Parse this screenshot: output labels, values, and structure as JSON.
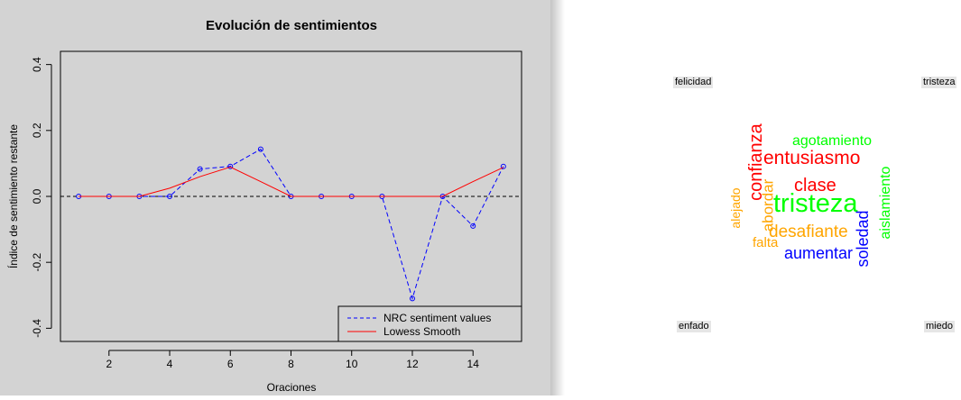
{
  "chart_data": {
    "type": "line",
    "title": "Evolución de sentimientos",
    "xlabel": "Oraciones",
    "ylabel": "Índice de sentimiento restante",
    "xlim": [
      0.4,
      15.6
    ],
    "ylim": [
      -0.44,
      0.44
    ],
    "x_ticks": [
      2,
      4,
      6,
      8,
      10,
      12,
      14
    ],
    "y_ticks": [
      -0.4,
      -0.2,
      0.0,
      0.2,
      0.4
    ],
    "y_tick_labels": [
      "-0.4",
      "-0.2",
      "0.0",
      "0.2",
      "0.4"
    ],
    "reference_line": 0,
    "grid": false,
    "legend_position": "bottom-right",
    "series": [
      {
        "name": "NRC sentiment values",
        "color": "#0000ff",
        "style": "dashed",
        "markers": "open-circle",
        "x": [
          1,
          2,
          3,
          4,
          5,
          6,
          7,
          8,
          9,
          10,
          11,
          12,
          13,
          14,
          15
        ],
        "y": [
          0,
          0,
          0,
          0,
          0.083,
          0.091,
          0.143,
          0,
          0,
          0,
          0,
          -0.31,
          0,
          -0.09,
          0.091
        ]
      },
      {
        "name": "Lowess Smooth",
        "color": "#ff0000",
        "style": "solid",
        "x": [
          1,
          2,
          3,
          4,
          5,
          6,
          7,
          8,
          9,
          10,
          11,
          12,
          13,
          14,
          15
        ],
        "y": [
          0,
          0,
          0,
          0.025,
          0.06,
          0.089,
          0.045,
          0,
          0,
          0,
          0,
          0,
          0,
          0.045,
          0.088
        ]
      }
    ]
  },
  "wordcloud": {
    "corner_labels": {
      "top_left": "felicidad",
      "top_right": "tristeza",
      "bottom_left": "enfado",
      "bottom_right": "miedo"
    },
    "words": [
      {
        "text": "tristeza",
        "color": "#00ff00"
      },
      {
        "text": "entusiasmo",
        "color": "#ff0000"
      },
      {
        "text": "confianza",
        "color": "#ff0000"
      },
      {
        "text": "clase",
        "color": "#ff0000"
      },
      {
        "text": "agotamiento",
        "color": "#00ff00"
      },
      {
        "text": "aislamiento",
        "color": "#00ff00"
      },
      {
        "text": "desafiante",
        "color": "#ffa500"
      },
      {
        "text": "abordar",
        "color": "#ffa500"
      },
      {
        "text": "alejado",
        "color": "#ffa500"
      },
      {
        "text": "falta",
        "color": "#ffa500"
      },
      {
        "text": "aumentar",
        "color": "#0000ff"
      },
      {
        "text": "soledad",
        "color": "#0000ff"
      }
    ]
  }
}
